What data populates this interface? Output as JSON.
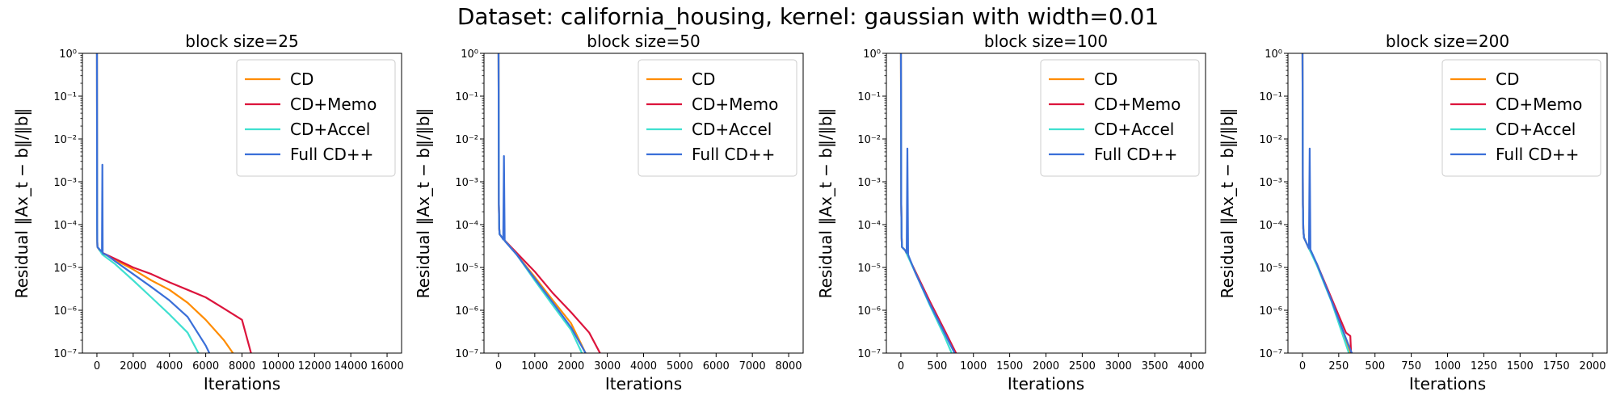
{
  "figure": {
    "suptitle": "Dataset: california_housing, kernel: gaussian with width=0.01"
  },
  "colors": {
    "CD": "#ff8c00",
    "CD+Memo": "#dc143c",
    "CD+Accel": "#40e0d0",
    "Full CD++": "#3a6fd8"
  },
  "chart_data": [
    {
      "type": "line",
      "title": "block size=25",
      "xlabel": "Iterations",
      "ylabel": "Residual ‖Ax_t − b‖/‖b‖",
      "yscale": "log",
      "xlim": [
        -800,
        16800
      ],
      "ylim": [
        1e-07,
        1
      ],
      "xticks": [
        0,
        2000,
        4000,
        6000,
        8000,
        10000,
        12000,
        14000,
        16000
      ],
      "yticks_exp": [
        -7,
        -6,
        -5,
        -4,
        -3,
        -2,
        -1,
        0
      ],
      "legend": "top-right",
      "series": [
        {
          "name": "CD",
          "x": [
            0,
            10,
            20,
            30,
            150,
            300,
            1000,
            2000,
            3000,
            4000,
            5000,
            6000,
            7000,
            7500
          ],
          "y": [
            1,
            0.0001,
            4e-05,
            3e-05,
            2.5e-05,
            2.2e-05,
            1.5e-05,
            9e-06,
            5e-06,
            3e-06,
            1.5e-06,
            6e-07,
            2e-07,
            1e-07
          ]
        },
        {
          "name": "CD+Memo",
          "x": [
            0,
            10,
            20,
            30,
            150,
            300,
            1000,
            2000,
            3000,
            4000,
            5000,
            6000,
            7000,
            8000,
            8500
          ],
          "y": [
            1,
            0.0001,
            4e-05,
            3e-05,
            2.5e-05,
            2.2e-05,
            1.6e-05,
            1e-05,
            7e-06,
            4.5e-06,
            3e-06,
            2e-06,
            1.1e-06,
            6e-07,
            1e-07
          ]
        },
        {
          "name": "CD+Accel",
          "x": [
            0,
            10,
            20,
            30,
            300,
            1000,
            2000,
            3000,
            4000,
            5000,
            5600
          ],
          "y": [
            1,
            0.0001,
            4e-05,
            3e-05,
            2e-05,
            1.2e-05,
            5e-06,
            2e-06,
            8e-07,
            3e-07,
            1e-07
          ]
        },
        {
          "name": "Full CD++",
          "x": [
            0,
            10,
            20,
            30,
            200,
            280,
            300,
            320,
            340,
            500,
            1000,
            2000,
            3000,
            4000,
            5000,
            6000,
            6200
          ],
          "y": [
            1,
            0.0001,
            4e-05,
            3e-05,
            2.5e-05,
            2.3e-05,
            0.0025,
            2.2e-05,
            2.1e-05,
            2e-05,
            1.4e-05,
            7e-06,
            3.5e-06,
            1.7e-06,
            7e-07,
            1.5e-07,
            1e-07
          ]
        }
      ]
    },
    {
      "type": "line",
      "title": "block size=50",
      "xlabel": "Iterations",
      "ylabel": "Residual ‖Ax_t − b‖/‖b‖",
      "yscale": "log",
      "xlim": [
        -400,
        8400
      ],
      "ylim": [
        1e-07,
        1
      ],
      "xticks": [
        0,
        1000,
        2000,
        3000,
        4000,
        5000,
        6000,
        7000,
        8000
      ],
      "yticks_exp": [
        -7,
        -6,
        -5,
        -4,
        -3,
        -2,
        -1,
        0
      ],
      "legend": "top-right",
      "series": [
        {
          "name": "CD",
          "x": [
            0,
            10,
            20,
            30,
            100,
            500,
            1000,
            1500,
            2000,
            2400
          ],
          "y": [
            1,
            0.0003,
            8e-05,
            6e-05,
            5e-05,
            2e-05,
            6e-06,
            1.7e-06,
            5e-07,
            1e-07
          ]
        },
        {
          "name": "CD+Memo",
          "x": [
            0,
            10,
            20,
            30,
            100,
            500,
            1000,
            1500,
            2000,
            2500,
            2800
          ],
          "y": [
            1,
            0.0003,
            8e-05,
            6e-05,
            5e-05,
            2.2e-05,
            8e-06,
            2.5e-06,
            9e-07,
            3e-07,
            1e-07
          ]
        },
        {
          "name": "CD+Accel",
          "x": [
            0,
            10,
            20,
            30,
            100,
            500,
            1000,
            1500,
            2000,
            2300
          ],
          "y": [
            1,
            0.0003,
            8e-05,
            6e-05,
            5e-05,
            2e-05,
            5e-06,
            1.3e-06,
            3.5e-07,
            1e-07
          ]
        },
        {
          "name": "Full CD++",
          "x": [
            0,
            10,
            20,
            30,
            100,
            130,
            150,
            170,
            190,
            500,
            1000,
            1500,
            2000,
            2400
          ],
          "y": [
            1,
            0.0003,
            8e-05,
            6e-05,
            5e-05,
            4.5e-05,
            0.004,
            4.2e-05,
            4e-05,
            2e-05,
            5.5e-06,
            1.5e-06,
            4e-07,
            1e-07
          ]
        }
      ]
    },
    {
      "type": "line",
      "title": "block size=100",
      "xlabel": "Iterations",
      "ylabel": "Residual ‖Ax_t − b‖/‖b‖",
      "yscale": "log",
      "xlim": [
        -200,
        4200
      ],
      "ylim": [
        1e-07,
        1
      ],
      "xticks": [
        0,
        500,
        1000,
        1500,
        2000,
        2500,
        3000,
        3500,
        4000
      ],
      "yticks_exp": [
        -7,
        -6,
        -5,
        -4,
        -3,
        -2,
        -1,
        0
      ],
      "legend": "top-right",
      "series": [
        {
          "name": "CD",
          "x": [
            0,
            5,
            10,
            15,
            60,
            200,
            400,
            600,
            750
          ],
          "y": [
            1,
            0.0003,
            5e-05,
            3e-05,
            2.5e-05,
            8e-06,
            1.5e-06,
            3e-07,
            1e-07
          ]
        },
        {
          "name": "CD+Memo",
          "x": [
            0,
            5,
            10,
            15,
            60,
            200,
            400,
            600,
            760
          ],
          "y": [
            1,
            0.0003,
            5e-05,
            3e-05,
            2.5e-05,
            8e-06,
            1.6e-06,
            3.5e-07,
            1e-07
          ]
        },
        {
          "name": "CD+Accel",
          "x": [
            0,
            5,
            10,
            15,
            60,
            200,
            400,
            600,
            700
          ],
          "y": [
            1,
            0.0003,
            5e-05,
            3e-05,
            2.5e-05,
            7.5e-06,
            1.3e-06,
            2.5e-07,
            1e-07
          ]
        },
        {
          "name": "Full CD++",
          "x": [
            0,
            5,
            10,
            15,
            60,
            80,
            90,
            100,
            110,
            200,
            400,
            600,
            740
          ],
          "y": [
            1,
            0.0003,
            5e-05,
            3e-05,
            2.5e-05,
            2.2e-05,
            0.006,
            2e-05,
            1.8e-05,
            7.5e-06,
            1.4e-06,
            3e-07,
            1e-07
          ]
        }
      ]
    },
    {
      "type": "line",
      "title": "block size=200",
      "xlabel": "Iterations",
      "ylabel": "Residual ‖Ax_t − b‖/‖b‖",
      "yscale": "log",
      "xlim": [
        -100,
        2100
      ],
      "ylim": [
        1e-07,
        1
      ],
      "xticks": [
        0,
        250,
        500,
        750,
        1000,
        1250,
        1500,
        1750,
        2000
      ],
      "yticks_exp": [
        -7,
        -6,
        -5,
        -4,
        -3,
        -2,
        -1,
        0
      ],
      "legend": "top-right",
      "series": [
        {
          "name": "CD",
          "x": [
            0,
            3,
            6,
            10,
            40,
            100,
            200,
            300,
            330
          ],
          "y": [
            1,
            0.0003,
            8e-05,
            5e-05,
            3e-05,
            1.2e-05,
            1.8e-06,
            2e-07,
            1e-07
          ]
        },
        {
          "name": "CD+Memo",
          "x": [
            0,
            3,
            6,
            10,
            40,
            100,
            200,
            300,
            330,
            335,
            345
          ],
          "y": [
            1,
            0.0003,
            8e-05,
            5e-05,
            3e-05,
            1.2e-05,
            1.9e-06,
            3e-07,
            2.5e-07,
            1e-07,
            1e-07
          ]
        },
        {
          "name": "CD+Accel",
          "x": [
            0,
            3,
            6,
            10,
            40,
            100,
            200,
            280,
            320
          ],
          "y": [
            1,
            0.0003,
            8e-05,
            5e-05,
            3e-05,
            1.1e-05,
            1.6e-06,
            2.5e-07,
            1e-07
          ]
        },
        {
          "name": "Full CD++",
          "x": [
            0,
            3,
            6,
            10,
            40,
            45,
            50,
            55,
            60,
            100,
            200,
            300,
            340
          ],
          "y": [
            1,
            0.0003,
            8e-05,
            5e-05,
            3e-05,
            2.8e-05,
            0.006,
            2.6e-05,
            2.4e-05,
            1.2e-05,
            1.7e-06,
            2.2e-07,
            1e-07
          ]
        }
      ]
    }
  ]
}
